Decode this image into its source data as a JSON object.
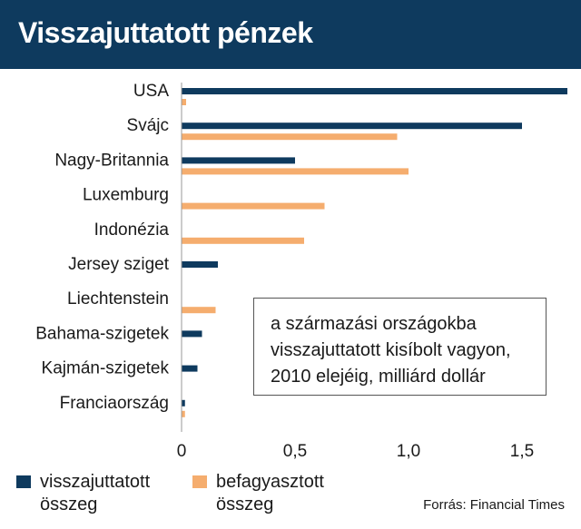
{
  "header": {
    "title": "Visszajuttatott pénzek"
  },
  "note": {
    "lines": [
      "a származási országokba",
      "visszajuttatott kisíbolt vagyon,",
      "2010 elejéig, milliárd dollár"
    ]
  },
  "legend": {
    "items": [
      {
        "label": "visszajuttatott összeg",
        "color": "#0e3a5e"
      },
      {
        "label": "befagyasztott összeg",
        "color": "#f5ad6e"
      }
    ]
  },
  "source": "Forrás: Financial Times",
  "chart_data": {
    "type": "bar",
    "orientation": "horizontal",
    "title": "Visszajuttatott pénzek",
    "subtitle": "a származási országokba visszajuttatott kisíbolt vagyon, 2010 elejéig, milliárd dollár",
    "categories": [
      "USA",
      "Svájc",
      "Nagy-Britannia",
      "Luxemburg",
      "Indonézia",
      "Jersey sziget",
      "Liechtenstein",
      "Bahama-szigetek",
      "Kajmán-szigetek",
      "Franciaország"
    ],
    "series": [
      {
        "name": "visszajuttatott összeg",
        "color": "#0e3a5e",
        "values": [
          1.7,
          1.5,
          0.5,
          0,
          0,
          0.16,
          0,
          0.09,
          0.07,
          0.015
        ]
      },
      {
        "name": "befagyasztott összeg",
        "color": "#f5ad6e",
        "values": [
          0.02,
          0.95,
          1.0,
          0.63,
          0.54,
          0,
          0.15,
          0,
          0,
          0.015
        ]
      }
    ],
    "xlim": [
      0,
      1.7
    ],
    "xticks": [
      0,
      0.5,
      1.0,
      1.5
    ],
    "xtick_labels": [
      "0",
      "0,5",
      "1,0",
      "1,5"
    ],
    "xlabel": "",
    "ylabel": "",
    "grid": false,
    "legend_position": "bottom-left"
  }
}
